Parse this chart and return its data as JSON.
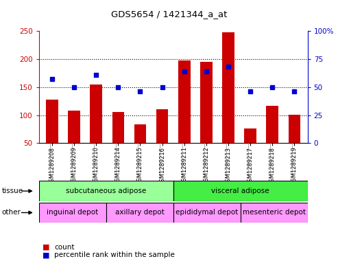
{
  "title": "GDS5654 / 1421344_a_at",
  "samples": [
    "GSM1289208",
    "GSM1289209",
    "GSM1289210",
    "GSM1289214",
    "GSM1289215",
    "GSM1289216",
    "GSM1289211",
    "GSM1289212",
    "GSM1289213",
    "GSM1289217",
    "GSM1289218",
    "GSM1289219"
  ],
  "counts": [
    128,
    108,
    155,
    106,
    84,
    110,
    197,
    195,
    248,
    76,
    116,
    101
  ],
  "percentiles": [
    57,
    50,
    61,
    50,
    46,
    50,
    64,
    64,
    68,
    46,
    50,
    46
  ],
  "ylim_left": [
    50,
    250
  ],
  "ylim_right": [
    0,
    100
  ],
  "yticks_left": [
    50,
    100,
    150,
    200,
    250
  ],
  "yticks_right": [
    0,
    25,
    50,
    75,
    100
  ],
  "bar_color": "#cc0000",
  "dot_color": "#0000cc",
  "tissue_labels": [
    "subcutaneous adipose",
    "visceral adipose"
  ],
  "tissue_ranges": [
    [
      0,
      6
    ],
    [
      6,
      12
    ]
  ],
  "tissue_color": "#99ff99",
  "tissue_color2": "#33dd33",
  "other_labels": [
    "inguinal depot",
    "axillary depot",
    "epididymal depot",
    "mesenteric depot"
  ],
  "other_ranges": [
    [
      0,
      3
    ],
    [
      3,
      6
    ],
    [
      6,
      9
    ],
    [
      9,
      12
    ]
  ],
  "other_color": "#ff99ff",
  "grid_color": "#000000",
  "bg_color": "#ffffff",
  "plot_bg": "#ffffff",
  "xticklabel_bg": "#d0d0d0",
  "legend_count_color": "#cc0000",
  "legend_dot_color": "#0000cc",
  "border_color": "#000000"
}
